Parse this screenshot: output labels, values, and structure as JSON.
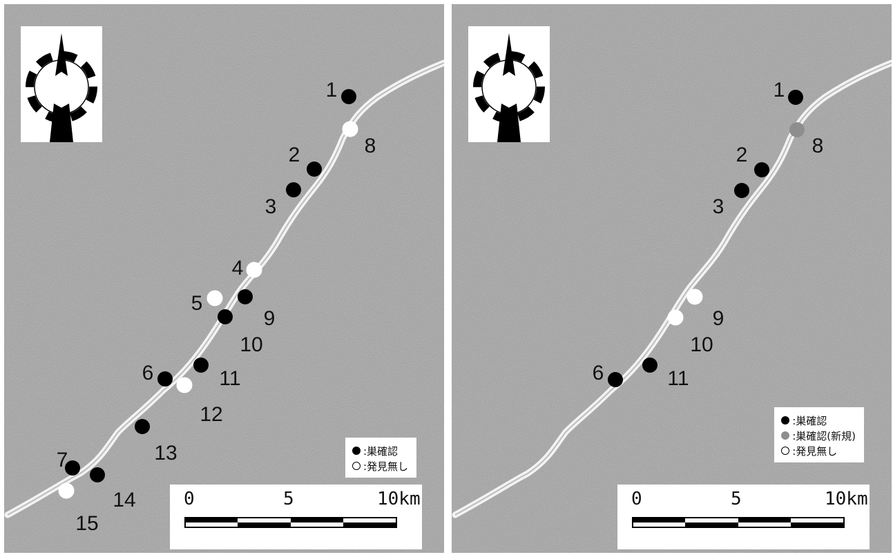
{
  "legend_left": {
    "nest_confirmed": ":巣確認",
    "not_found": ":発見無し"
  },
  "legend_right": {
    "nest_confirmed": ":巣確認",
    "nest_confirmed_new": ":巣確認(新規)",
    "not_found": ":発見無し"
  },
  "scale": {
    "zero": "0",
    "five": "5",
    "ten": "10km"
  },
  "colors": {
    "confirmed": "#000000",
    "new": "#8e8e8e",
    "not_found": "#ffffff",
    "terrain": "#9a9a9a",
    "river": "#f2f2f2"
  },
  "left_sites": [
    {
      "label": "1",
      "status": "confirmed"
    },
    {
      "label": "2",
      "status": "confirmed"
    },
    {
      "label": "3",
      "status": "confirmed"
    },
    {
      "label": "4",
      "status": "not_found"
    },
    {
      "label": "5",
      "status": "not_found"
    },
    {
      "label": "6",
      "status": "confirmed"
    },
    {
      "label": "7",
      "status": "confirmed"
    },
    {
      "label": "8",
      "status": "not_found"
    },
    {
      "label": "9",
      "status": "confirmed"
    },
    {
      "label": "10",
      "status": "confirmed"
    },
    {
      "label": "11",
      "status": "confirmed"
    },
    {
      "label": "12",
      "status": "not_found"
    },
    {
      "label": "13",
      "status": "confirmed"
    },
    {
      "label": "14",
      "status": "confirmed"
    },
    {
      "label": "15",
      "status": "not_found"
    }
  ],
  "right_sites": [
    {
      "label": "1",
      "status": "confirmed"
    },
    {
      "label": "2",
      "status": "confirmed"
    },
    {
      "label": "3",
      "status": "confirmed"
    },
    {
      "label": "6",
      "status": "confirmed"
    },
    {
      "label": "8",
      "status": "new"
    },
    {
      "label": "9",
      "status": "not_found"
    },
    {
      "label": "10",
      "status": "not_found"
    },
    {
      "label": "11",
      "status": "confirmed"
    }
  ]
}
